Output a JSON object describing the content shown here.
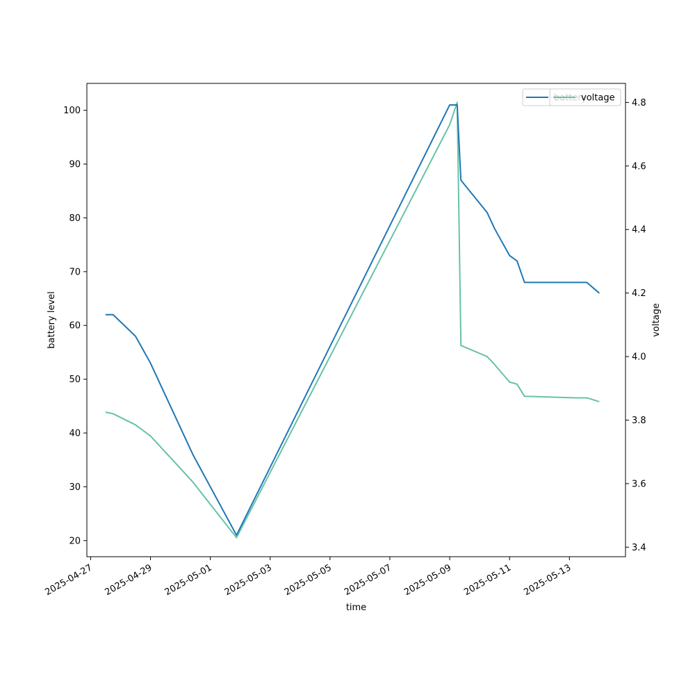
{
  "chart_data": {
    "type": "line",
    "title": "",
    "xlabel": "time",
    "ylabel": "battery level",
    "ylabel_right": "voltage",
    "x_ticks": [
      "2025-04-27",
      "2025-04-29",
      "2025-05-01",
      "2025-05-03",
      "2025-05-05",
      "2025-05-07",
      "2025-05-09",
      "2025-05-11",
      "2025-05-13"
    ],
    "y_ticks": [
      20,
      30,
      40,
      50,
      60,
      70,
      80,
      90,
      100
    ],
    "y2_ticks": [
      "3.4",
      "3.6",
      "3.8",
      "4.0",
      "4.2",
      "4.4",
      "4.6",
      "4.8"
    ],
    "xlim": [
      "2025-04-26 21:00",
      "2025-05-14 21:00"
    ],
    "ylim": [
      17,
      105
    ],
    "y2lim": [
      3.37,
      4.86
    ],
    "grid": false,
    "legend_position": "top-right",
    "colors": {
      "battery": "#1f77b4",
      "voltage": "#66c2a5"
    },
    "series": [
      {
        "name": "battery",
        "axis": "left",
        "points": [
          [
            "2025-04-27 12:00",
            62
          ],
          [
            "2025-04-27 18:00",
            62
          ],
          [
            "2025-04-28 12:00",
            58
          ],
          [
            "2025-04-29 00:00",
            53
          ],
          [
            "2025-04-29 20:00",
            43
          ],
          [
            "2025-04-30 00:00",
            41
          ],
          [
            "2025-04-30 10:00",
            36
          ],
          [
            "2025-05-01 21:00",
            21
          ],
          [
            "2025-05-09 00:00",
            101
          ],
          [
            "2025-05-09 06:00",
            101
          ],
          [
            "2025-05-09 09:00",
            87
          ],
          [
            "2025-05-10 06:00",
            81
          ],
          [
            "2025-05-10 12:00",
            78
          ],
          [
            "2025-05-11 00:00",
            73
          ],
          [
            "2025-05-11 06:00",
            72
          ],
          [
            "2025-05-11 12:00",
            68
          ],
          [
            "2025-05-13 14:00",
            68
          ],
          [
            "2025-05-14 00:00",
            66
          ]
        ]
      },
      {
        "name": "voltage",
        "axis": "right",
        "points": [
          [
            "2025-04-27 12:00",
            3.825
          ],
          [
            "2025-04-27 18:00",
            3.82
          ],
          [
            "2025-04-28 12:00",
            3.785
          ],
          [
            "2025-04-29 00:00",
            3.75
          ],
          [
            "2025-04-29 20:00",
            3.665
          ],
          [
            "2025-04-30 00:00",
            3.648
          ],
          [
            "2025-04-30 10:00",
            3.605
          ],
          [
            "2025-05-01 21:00",
            3.43
          ],
          [
            "2025-05-09 00:00",
            4.73
          ],
          [
            "2025-05-09 06:00",
            4.8
          ],
          [
            "2025-05-09 09:00",
            4.035
          ],
          [
            "2025-05-10 06:00",
            4.0
          ],
          [
            "2025-05-10 12:00",
            3.975
          ],
          [
            "2025-05-11 00:00",
            3.92
          ],
          [
            "2025-05-11 06:00",
            3.913
          ],
          [
            "2025-05-11 12:00",
            3.875
          ],
          [
            "2025-05-13 06:00",
            3.87
          ],
          [
            "2025-05-13 14:00",
            3.87
          ],
          [
            "2025-05-14 00:00",
            3.858
          ]
        ]
      }
    ],
    "legend": [
      {
        "label": "battery",
        "series": "battery"
      },
      {
        "label": "voltage",
        "series": "voltage"
      }
    ]
  }
}
